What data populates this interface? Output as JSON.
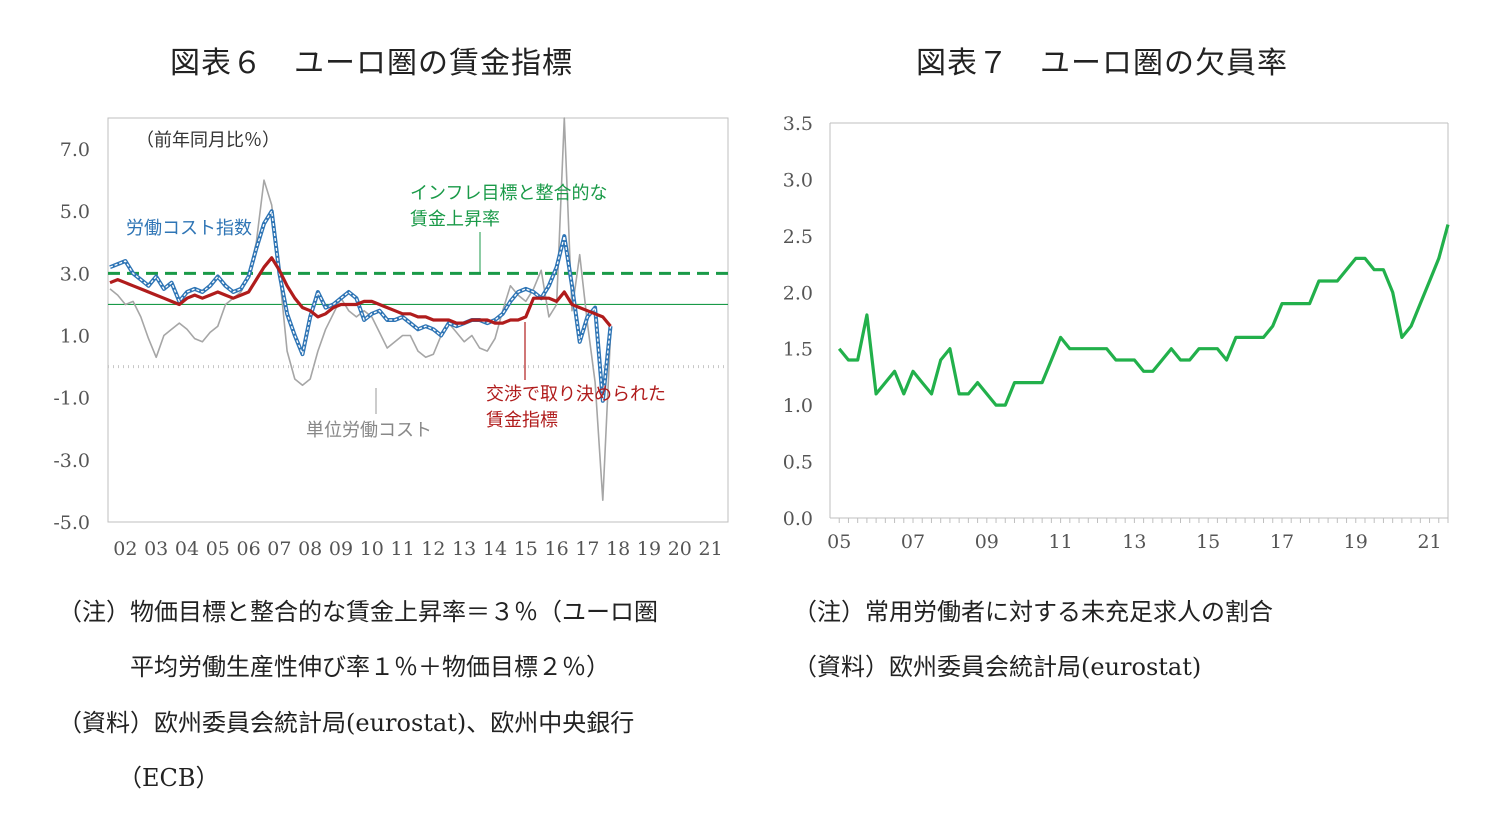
{
  "colors": {
    "wage": "#b01c1c",
    "labour_cost": "#2f75b5",
    "unit_labour_cost": "#a6a6a6",
    "target": "#1a9a48",
    "vacancy": "#22b04b",
    "axis": "#bfbfbf",
    "tick_text": "#555555"
  },
  "fig6": {
    "title": "図表６　ユーロ圏の賃金指標",
    "unit_label": "（前年同月比％）",
    "notes": [
      "（注）物価目標と整合的な賃金上昇率＝３％（ユーロ圏",
      "　　　平均労働生産性伸び率１％＋物価目標２％）",
      "（資料）欧州委員会統計局(eurostat)、欧州中央銀行",
      "　　　（ECB）"
    ],
    "annotations": {
      "labour_cost": "労働コスト指数",
      "target_line1": "インフレ目標と整合的な",
      "target_line2": "賃金上昇率",
      "wage_line1": "交渉で取り決められた",
      "wage_line2": "賃金指標",
      "unit_labour_cost": "単位労働コスト"
    },
    "chart_data": {
      "type": "line",
      "title": "図表６　ユーロ圏の賃金指標",
      "ylabel": "（前年同月比％）",
      "ylim": [
        -5.0,
        8.0
      ],
      "yticks": [
        "7.0",
        "5.0",
        "3.0",
        "1.0",
        "-1.0",
        "-3.0",
        "-5.0"
      ],
      "ytick_values": [
        7,
        5,
        3,
        1,
        -1,
        -3,
        -5
      ],
      "xticks": [
        "02",
        "03",
        "04",
        "05",
        "06",
        "07",
        "08",
        "09",
        "10",
        "11",
        "12",
        "13",
        "14",
        "15",
        "16",
        "17",
        "18",
        "19",
        "20",
        "21"
      ],
      "x_start": 2002.0,
      "x_step": 0.25,
      "reference_lines": [
        {
          "name": "インフレ目標と整合的な賃金上昇率",
          "value": 3.0,
          "style": "dashed"
        },
        {
          "value": 2.0,
          "style": "solid-thin"
        },
        {
          "value": 0.0,
          "style": "dotted"
        }
      ],
      "series": [
        {
          "name": "交渉で取り決められた賃金指標",
          "key": "wage",
          "values": [
            2.7,
            2.8,
            2.7,
            2.6,
            2.5,
            2.4,
            2.3,
            2.2,
            2.1,
            2.0,
            2.2,
            2.3,
            2.2,
            2.3,
            2.4,
            2.3,
            2.2,
            2.3,
            2.4,
            2.8,
            3.2,
            3.5,
            3.1,
            2.6,
            2.2,
            1.9,
            1.8,
            1.6,
            1.7,
            1.9,
            2.0,
            2.0,
            2.0,
            2.1,
            2.1,
            2.0,
            1.9,
            1.8,
            1.7,
            1.7,
            1.6,
            1.6,
            1.5,
            1.5,
            1.5,
            1.4,
            1.4,
            1.5,
            1.5,
            1.5,
            1.4,
            1.4,
            1.5,
            1.5,
            1.6,
            2.2,
            2.2,
            2.2,
            2.1,
            2.4,
            2.0,
            1.9,
            1.8,
            1.7,
            1.6,
            1.3
          ]
        },
        {
          "name": "労働コスト指数",
          "key": "labour_cost",
          "values": [
            3.2,
            3.3,
            3.4,
            3.0,
            2.8,
            2.6,
            2.9,
            2.5,
            2.7,
            2.1,
            2.4,
            2.5,
            2.4,
            2.6,
            2.9,
            2.6,
            2.4,
            2.5,
            2.9,
            3.8,
            4.6,
            5.0,
            3.0,
            1.7,
            1.0,
            0.4,
            1.6,
            2.4,
            1.9,
            2.0,
            2.2,
            2.4,
            2.2,
            1.5,
            1.7,
            1.8,
            1.5,
            1.5,
            1.6,
            1.4,
            1.2,
            1.3,
            1.2,
            1.0,
            1.4,
            1.3,
            1.4,
            1.5,
            1.5,
            1.4,
            1.5,
            1.7,
            2.1,
            2.4,
            2.5,
            2.4,
            2.2,
            2.6,
            3.2,
            4.2,
            2.6,
            0.8,
            1.6,
            1.9,
            -1.1,
            1.3
          ]
        },
        {
          "name": "単位労働コスト",
          "key": "unit_labour_cost",
          "values": [
            2.5,
            2.3,
            2.0,
            2.1,
            1.6,
            0.9,
            0.3,
            1.0,
            1.2,
            1.4,
            1.2,
            0.9,
            0.8,
            1.1,
            1.3,
            2.0,
            2.2,
            2.4,
            2.9,
            4.0,
            6.0,
            5.2,
            3.0,
            0.5,
            -0.4,
            -0.6,
            -0.4,
            0.5,
            1.2,
            1.7,
            2.2,
            1.8,
            1.6,
            1.8,
            1.6,
            1.1,
            0.6,
            0.8,
            1.0,
            1.0,
            0.5,
            0.3,
            0.4,
            1.0,
            1.4,
            1.1,
            0.8,
            1.0,
            0.6,
            0.5,
            0.9,
            1.8,
            2.6,
            2.3,
            2.1,
            2.5,
            3.1,
            1.6,
            2.0,
            8.0,
            1.8,
            3.6,
            1.4,
            -0.5,
            -4.3,
            1.0
          ]
        }
      ]
    }
  },
  "fig7": {
    "title": "図表７　ユーロ圏の欠員率",
    "notes": [
      "（注）常用労働者に対する未充足求人の割合",
      "（資料）欧州委員会統計局(eurostat)"
    ],
    "chart_data": {
      "type": "line",
      "title": "図表７　ユーロ圏の欠員率",
      "ylim": [
        0.0,
        3.5
      ],
      "yticks": [
        "3.5",
        "3.0",
        "2.5",
        "2.0",
        "1.5",
        "1.0",
        "0.5",
        "0.0"
      ],
      "ytick_values": [
        3.5,
        3.0,
        2.5,
        2.0,
        1.5,
        1.0,
        0.5,
        0.0
      ],
      "xticks": [
        "05",
        "07",
        "09",
        "11",
        "13",
        "15",
        "17",
        "19",
        "21"
      ],
      "x_start": 2005.0,
      "x_step": 0.25,
      "series": [
        {
          "name": "欠員率",
          "key": "vacancy",
          "values": [
            1.5,
            1.4,
            1.4,
            1.8,
            1.1,
            1.2,
            1.3,
            1.1,
            1.3,
            1.2,
            1.1,
            1.4,
            1.5,
            1.1,
            1.1,
            1.2,
            1.1,
            1.0,
            1.0,
            1.2,
            1.2,
            1.2,
            1.2,
            1.4,
            1.6,
            1.5,
            1.5,
            1.5,
            1.5,
            1.5,
            1.4,
            1.4,
            1.4,
            1.3,
            1.3,
            1.4,
            1.5,
            1.4,
            1.4,
            1.5,
            1.5,
            1.5,
            1.4,
            1.6,
            1.6,
            1.6,
            1.6,
            1.7,
            1.9,
            1.9,
            1.9,
            1.9,
            2.1,
            2.1,
            2.1,
            2.2,
            2.3,
            2.3,
            2.2,
            2.2,
            2.0,
            1.6,
            1.7,
            1.9,
            2.1,
            2.3,
            2.6
          ]
        }
      ]
    }
  }
}
